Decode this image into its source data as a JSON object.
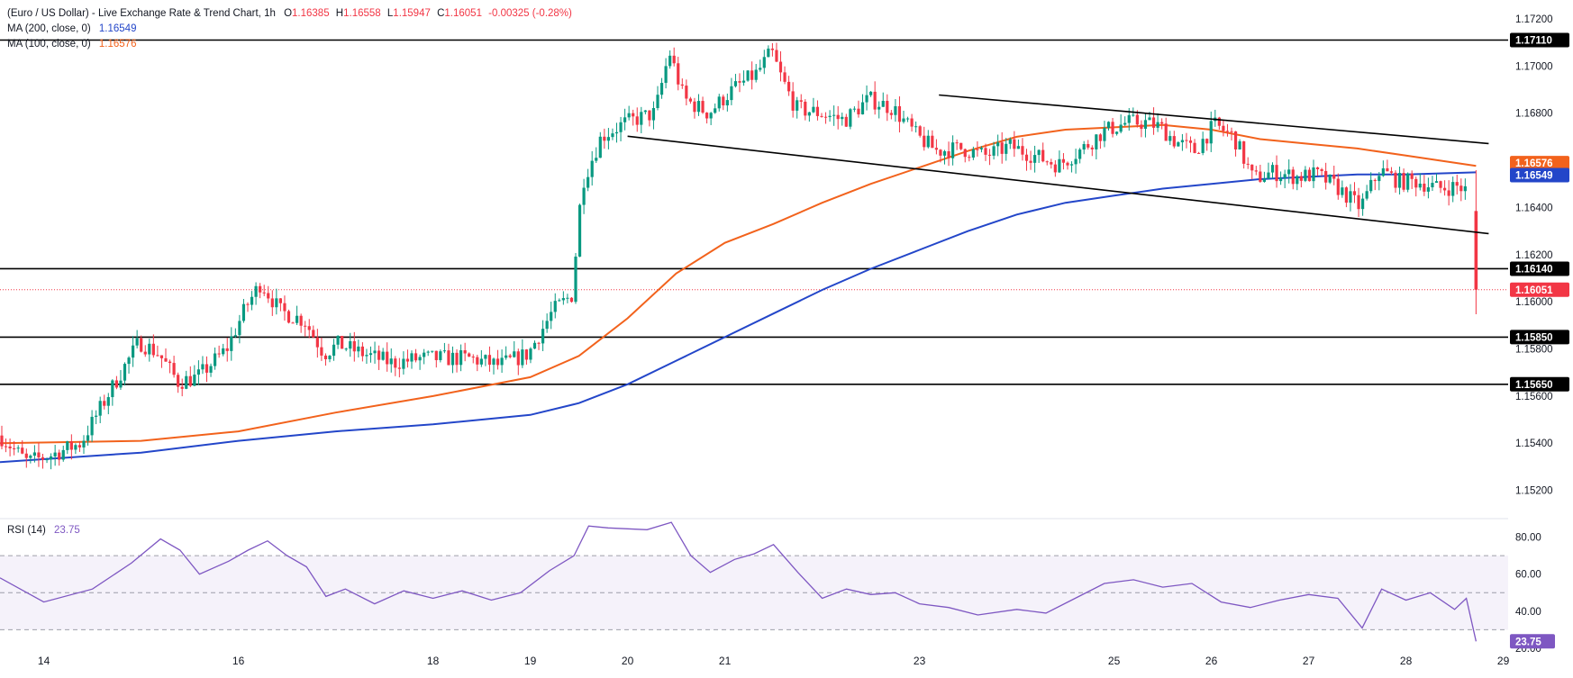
{
  "header": {
    "symbol": "(Euro / US Dollar) - Live Exchange Rate & Trend Chart, 1h",
    "o_label": "O",
    "o": "1.16385",
    "h_label": "H",
    "h": "1.16558",
    "l_label": "L",
    "l": "1.15947",
    "c_label": "C",
    "c": "1.16051",
    "change": "-0.00325 (-0.28%)"
  },
  "indicators": [
    {
      "label": "MA (200, close, 0)",
      "value": "1.16549",
      "color": "#2346c9"
    },
    {
      "label": "MA (100, close, 0)",
      "value": "1.16576",
      "color": "#f2621c"
    }
  ],
  "rsi_panel": {
    "label": "RSI (14)",
    "value": "23.75",
    "color": "#7e57c2"
  },
  "colors": {
    "up": "#089981",
    "down": "#f23645",
    "ma200": "#2346c9",
    "ma100": "#f2621c",
    "rsi": "#7e57c2"
  },
  "chart_data": {
    "type": "candlestick",
    "timeframe": "1h",
    "y_range": [
      1.1508,
      1.1728
    ],
    "y_ticks": [
      "1.15200",
      "1.15400",
      "1.15600",
      "1.15800",
      "1.16000",
      "1.16200",
      "1.16400",
      "1.16800",
      "1.17000",
      "1.17200"
    ],
    "x_day_range": [
      13.55,
      29.05
    ],
    "x_ticks": [
      {
        "label": "14",
        "day": 14
      },
      {
        "label": "16",
        "day": 16
      },
      {
        "label": "18",
        "day": 18
      },
      {
        "label": "19",
        "day": 19
      },
      {
        "label": "20",
        "day": 20
      },
      {
        "label": "21",
        "day": 21
      },
      {
        "label": "23",
        "day": 23
      },
      {
        "label": "25",
        "day": 25
      },
      {
        "label": "26",
        "day": 26
      },
      {
        "label": "27",
        "day": 27
      },
      {
        "label": "28",
        "day": 28
      },
      {
        "label": "29",
        "day": 29
      }
    ],
    "price_path": [
      [
        13.55,
        1.1544
      ],
      [
        13.85,
        1.1532
      ],
      [
        14.1,
        1.1535
      ],
      [
        14.4,
        1.154
      ],
      [
        14.7,
        1.1562
      ],
      [
        15.0,
        1.1583
      ],
      [
        15.2,
        1.1578
      ],
      [
        15.4,
        1.1566
      ],
      [
        15.6,
        1.1568
      ],
      [
        15.9,
        1.158
      ],
      [
        16.1,
        1.1598
      ],
      [
        16.25,
        1.1608
      ],
      [
        16.45,
        1.1596
      ],
      [
        16.7,
        1.1592
      ],
      [
        16.9,
        1.1578
      ],
      [
        17.05,
        1.1582
      ],
      [
        17.3,
        1.1578
      ],
      [
        17.6,
        1.1574
      ],
      [
        17.9,
        1.1576
      ],
      [
        18.1,
        1.1576
      ],
      [
        18.4,
        1.1576
      ],
      [
        18.7,
        1.1573
      ],
      [
        19.0,
        1.1578
      ],
      [
        19.25,
        1.1596
      ],
      [
        19.45,
        1.1603
      ],
      [
        19.55,
        1.165
      ],
      [
        19.75,
        1.167
      ],
      [
        20.0,
        1.1676
      ],
      [
        20.3,
        1.168
      ],
      [
        20.45,
        1.1706
      ],
      [
        20.6,
        1.1686
      ],
      [
        20.85,
        1.168
      ],
      [
        21.1,
        1.169
      ],
      [
        21.35,
        1.1697
      ],
      [
        21.5,
        1.1706
      ],
      [
        21.6,
        1.1695
      ],
      [
        21.75,
        1.1682
      ],
      [
        22.0,
        1.168
      ],
      [
        22.25,
        1.1677
      ],
      [
        22.5,
        1.1686
      ],
      [
        22.75,
        1.1682
      ],
      [
        23.0,
        1.167
      ],
      [
        23.2,
        1.1664
      ],
      [
        23.45,
        1.1665
      ],
      [
        23.7,
        1.1662
      ],
      [
        23.95,
        1.1666
      ],
      [
        24.2,
        1.1662
      ],
      [
        24.45,
        1.1658
      ],
      [
        24.7,
        1.1665
      ],
      [
        24.9,
        1.1672
      ],
      [
        25.15,
        1.1676
      ],
      [
        25.35,
        1.1676
      ],
      [
        25.5,
        1.1674
      ],
      [
        25.65,
        1.1668
      ],
      [
        25.85,
        1.1664
      ],
      [
        26.05,
        1.1675
      ],
      [
        26.25,
        1.167
      ],
      [
        26.45,
        1.1652
      ],
      [
        26.65,
        1.1655
      ],
      [
        26.9,
        1.1653
      ],
      [
        27.1,
        1.1654
      ],
      [
        27.3,
        1.1649
      ],
      [
        27.55,
        1.164
      ],
      [
        27.75,
        1.1656
      ],
      [
        27.95,
        1.1651
      ],
      [
        28.15,
        1.1651
      ],
      [
        28.35,
        1.1648
      ],
      [
        28.55,
        1.1649
      ],
      [
        28.65,
        1.1647
      ],
      [
        28.72,
        1.1605
      ]
    ],
    "last_candle": {
      "o": 1.16385,
      "h": 1.16558,
      "l": 1.15947,
      "c": 1.16051
    },
    "ma100_path": [
      [
        13.55,
        1.154
      ],
      [
        15.0,
        1.1541
      ],
      [
        16.0,
        1.1545
      ],
      [
        17.0,
        1.1553
      ],
      [
        18.0,
        1.156
      ],
      [
        19.0,
        1.1568
      ],
      [
        19.5,
        1.1577
      ],
      [
        20.0,
        1.1593
      ],
      [
        20.5,
        1.1612
      ],
      [
        21.0,
        1.1625
      ],
      [
        21.5,
        1.1633
      ],
      [
        22.0,
        1.1642
      ],
      [
        22.5,
        1.165
      ],
      [
        23.0,
        1.1657
      ],
      [
        23.5,
        1.1664
      ],
      [
        24.0,
        1.167
      ],
      [
        24.5,
        1.1673
      ],
      [
        25.0,
        1.1674
      ],
      [
        25.5,
        1.1675
      ],
      [
        26.0,
        1.1673
      ],
      [
        26.5,
        1.1669
      ],
      [
        27.0,
        1.1667
      ],
      [
        27.5,
        1.1665
      ],
      [
        28.0,
        1.1662
      ],
      [
        28.72,
        1.16576
      ]
    ],
    "ma200_path": [
      [
        13.55,
        1.1532
      ],
      [
        15.0,
        1.1536
      ],
      [
        16.0,
        1.1541
      ],
      [
        17.0,
        1.1545
      ],
      [
        18.0,
        1.1548
      ],
      [
        19.0,
        1.1552
      ],
      [
        19.5,
        1.1557
      ],
      [
        20.0,
        1.1565
      ],
      [
        20.5,
        1.1575
      ],
      [
        21.0,
        1.1585
      ],
      [
        21.5,
        1.1595
      ],
      [
        22.0,
        1.1605
      ],
      [
        22.5,
        1.1614
      ],
      [
        23.0,
        1.1622
      ],
      [
        23.5,
        1.163
      ],
      [
        24.0,
        1.1637
      ],
      [
        24.5,
        1.1642
      ],
      [
        25.0,
        1.1645
      ],
      [
        25.5,
        1.1648
      ],
      [
        26.0,
        1.165
      ],
      [
        26.5,
        1.1652
      ],
      [
        27.0,
        1.1653
      ],
      [
        27.5,
        1.1654
      ],
      [
        28.0,
        1.1654
      ],
      [
        28.72,
        1.16549
      ]
    ],
    "horizontal_levels": [
      {
        "price": 1.1711,
        "label": "1.17110"
      },
      {
        "price": 1.1614,
        "label": "1.16140"
      },
      {
        "price": 1.1585,
        "label": "1.15850"
      },
      {
        "price": 1.1565,
        "label": "1.15650"
      }
    ],
    "current_price": {
      "price": 1.16051,
      "label": "1.16051",
      "color": "#f23645"
    },
    "ma_price_tags": [
      {
        "price": 1.16576,
        "label": "1.16576",
        "color": "#f2621c"
      },
      {
        "price": 1.16549,
        "label": "1.16549",
        "color": "#2346c9"
      }
    ],
    "trendlines": [
      {
        "from": [
          23.2,
          1.16877
        ],
        "to": [
          28.85,
          1.16671
        ]
      },
      {
        "from": [
          20.0,
          1.16702
        ],
        "to": [
          28.85,
          1.16289
        ]
      }
    ],
    "rsi": {
      "range": [
        20,
        90
      ],
      "ticks": [
        "20.00",
        "40.00",
        "60.00",
        "80.00"
      ],
      "band": [
        30,
        70
      ],
      "mid": 50,
      "value_label": "23.75",
      "path": [
        [
          13.55,
          58
        ],
        [
          14.0,
          45
        ],
        [
          14.5,
          52
        ],
        [
          14.9,
          66
        ],
        [
          15.2,
          79
        ],
        [
          15.4,
          73
        ],
        [
          15.6,
          60
        ],
        [
          15.9,
          67
        ],
        [
          16.1,
          73
        ],
        [
          16.3,
          78
        ],
        [
          16.5,
          70
        ],
        [
          16.7,
          64
        ],
        [
          16.9,
          48
        ],
        [
          17.1,
          52
        ],
        [
          17.4,
          44
        ],
        [
          17.7,
          51
        ],
        [
          18.0,
          47
        ],
        [
          18.3,
          51
        ],
        [
          18.6,
          46
        ],
        [
          18.9,
          50
        ],
        [
          19.2,
          62
        ],
        [
          19.45,
          70
        ],
        [
          19.6,
          86
        ],
        [
          19.8,
          85
        ],
        [
          20.2,
          84
        ],
        [
          20.45,
          88
        ],
        [
          20.65,
          70
        ],
        [
          20.85,
          61
        ],
        [
          21.1,
          68
        ],
        [
          21.3,
          71
        ],
        [
          21.5,
          76
        ],
        [
          21.75,
          61
        ],
        [
          22.0,
          47
        ],
        [
          22.25,
          52
        ],
        [
          22.5,
          49
        ],
        [
          22.75,
          50
        ],
        [
          23.0,
          44
        ],
        [
          23.3,
          42
        ],
        [
          23.6,
          38
        ],
        [
          24.0,
          41
        ],
        [
          24.3,
          39
        ],
        [
          24.6,
          47
        ],
        [
          24.9,
          55
        ],
        [
          25.2,
          57
        ],
        [
          25.5,
          53
        ],
        [
          25.8,
          55
        ],
        [
          26.1,
          45
        ],
        [
          26.4,
          42
        ],
        [
          26.7,
          46
        ],
        [
          27.0,
          49
        ],
        [
          27.3,
          47
        ],
        [
          27.55,
          31
        ],
        [
          27.75,
          52
        ],
        [
          28.0,
          46
        ],
        [
          28.25,
          50
        ],
        [
          28.5,
          41
        ],
        [
          28.62,
          47
        ],
        [
          28.72,
          23.75
        ]
      ]
    }
  }
}
